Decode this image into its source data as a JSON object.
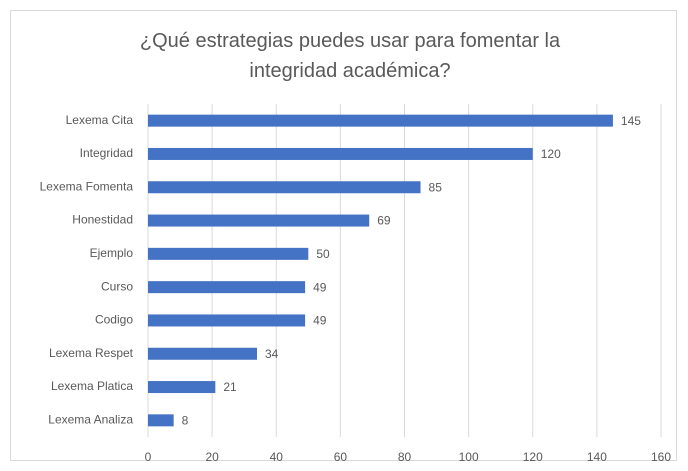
{
  "chart_data": {
    "type": "bar",
    "orientation": "horizontal",
    "title": "¿Qué estrategias puedes usar para fomentar la integridad académica?",
    "categories": [
      "Lexema Cita",
      "Integridad",
      "Lexema Fomenta",
      "Honestidad",
      "Ejemplo",
      "Curso",
      "Codigo",
      "Lexema Respet",
      "Lexema Platica",
      "Lexema Analiza"
    ],
    "values": [
      145,
      120,
      85,
      69,
      50,
      49,
      49,
      34,
      21,
      8
    ],
    "color": "#4472c4",
    "xlim": [
      0,
      160
    ],
    "xticks": [
      0,
      20,
      40,
      60,
      80,
      100,
      120,
      140,
      160
    ],
    "grid": true
  }
}
